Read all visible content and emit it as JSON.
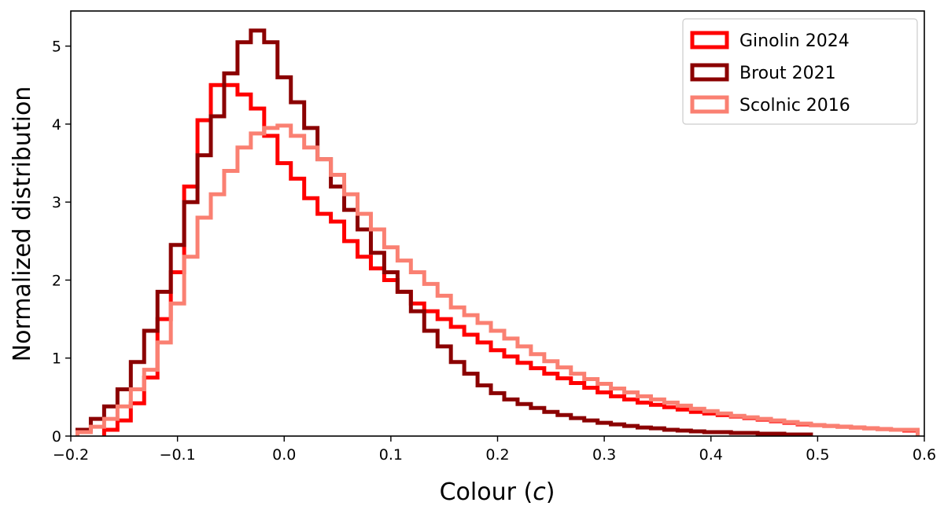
{
  "chart_data": {
    "type": "histogram",
    "xlabel": "Colour (",
    "xlabel_var": "c",
    "xlabel_end": ")",
    "ylabel": "Normalized distribution",
    "xlim": [
      -0.2,
      0.6
    ],
    "ylim": [
      0,
      5.45
    ],
    "xticks": [
      -0.2,
      -0.1,
      0.0,
      0.1,
      0.2,
      0.3,
      0.4,
      0.5,
      0.6
    ],
    "xtick_labels": [
      "−0.2",
      "−0.1",
      "0.0",
      "0.1",
      "0.2",
      "0.3",
      "0.4",
      "0.5",
      "0.6"
    ],
    "yticks": [
      0,
      1,
      2,
      3,
      4,
      5
    ],
    "ytick_labels": [
      "0",
      "1",
      "2",
      "3",
      "4",
      "5"
    ],
    "grid": false,
    "legend_placement": "top-right",
    "series": [
      {
        "name": "Ginolin 2024",
        "color": "#ff0000",
        "x": [
          -0.1625,
          -0.15,
          -0.1375,
          -0.125,
          -0.1125,
          -0.1,
          -0.0875,
          -0.075,
          -0.0625,
          -0.05,
          -0.0375,
          -0.025,
          -0.0125,
          0.0,
          0.0125,
          0.025,
          0.0375,
          0.05,
          0.0625,
          0.075,
          0.0875,
          0.1,
          0.1125,
          0.125,
          0.1375,
          0.15,
          0.1625,
          0.175,
          0.1875,
          0.2,
          0.2125,
          0.225,
          0.2375,
          0.25,
          0.2625,
          0.275,
          0.2875,
          0.3,
          0.3125,
          0.325,
          0.3375,
          0.35,
          0.3625,
          0.375,
          0.3875,
          0.4,
          0.4125,
          0.425,
          0.4375,
          0.45,
          0.4625,
          0.475,
          0.4875,
          0.5,
          0.5125,
          0.525,
          0.5375,
          0.55,
          0.5625,
          0.575,
          0.5875
        ],
        "values": [
          0.08,
          0.2,
          0.42,
          0.75,
          1.5,
          2.1,
          3.2,
          4.05,
          4.5,
          4.5,
          4.38,
          4.2,
          3.85,
          3.5,
          3.3,
          3.05,
          2.85,
          2.75,
          2.5,
          2.3,
          2.15,
          2.0,
          1.85,
          1.7,
          1.6,
          1.5,
          1.4,
          1.3,
          1.2,
          1.1,
          1.02,
          0.94,
          0.87,
          0.8,
          0.74,
          0.68,
          0.62,
          0.56,
          0.51,
          0.47,
          0.43,
          0.4,
          0.37,
          0.34,
          0.31,
          0.29,
          0.27,
          0.25,
          0.23,
          0.21,
          0.19,
          0.17,
          0.15,
          0.14,
          0.13,
          0.12,
          0.11,
          0.1,
          0.09,
          0.08,
          0.07
        ]
      },
      {
        "name": "Brout 2021",
        "color": "#8b0000",
        "x": [
          -0.1875,
          -0.175,
          -0.1625,
          -0.15,
          -0.1375,
          -0.125,
          -0.1125,
          -0.1,
          -0.0875,
          -0.075,
          -0.0625,
          -0.05,
          -0.0375,
          -0.025,
          -0.0125,
          0.0,
          0.0125,
          0.025,
          0.0375,
          0.05,
          0.0625,
          0.075,
          0.0875,
          0.1,
          0.1125,
          0.125,
          0.1375,
          0.15,
          0.1625,
          0.175,
          0.1875,
          0.2,
          0.2125,
          0.225,
          0.2375,
          0.25,
          0.2625,
          0.275,
          0.2875,
          0.3,
          0.3125,
          0.325,
          0.3375,
          0.35,
          0.3625,
          0.375,
          0.3875,
          0.4,
          0.4125,
          0.425,
          0.4375,
          0.45,
          0.4625,
          0.475,
          0.4875
        ],
        "values": [
          0.08,
          0.22,
          0.38,
          0.6,
          0.95,
          1.35,
          1.85,
          2.45,
          3.0,
          3.6,
          4.1,
          4.65,
          5.05,
          5.2,
          5.05,
          4.6,
          4.28,
          3.95,
          3.55,
          3.2,
          2.9,
          2.65,
          2.35,
          2.1,
          1.85,
          1.6,
          1.35,
          1.15,
          0.95,
          0.8,
          0.65,
          0.55,
          0.47,
          0.41,
          0.36,
          0.31,
          0.27,
          0.23,
          0.2,
          0.17,
          0.15,
          0.13,
          0.11,
          0.1,
          0.08,
          0.07,
          0.06,
          0.05,
          0.05,
          0.04,
          0.04,
          0.03,
          0.03,
          0.02,
          0.02
        ]
      },
      {
        "name": "Scolnic 2016",
        "color": "#fa8072",
        "x": [
          -0.1875,
          -0.175,
          -0.1625,
          -0.15,
          -0.1375,
          -0.125,
          -0.1125,
          -0.1,
          -0.0875,
          -0.075,
          -0.0625,
          -0.05,
          -0.0375,
          -0.025,
          -0.0125,
          0.0,
          0.0125,
          0.025,
          0.0375,
          0.05,
          0.0625,
          0.075,
          0.0875,
          0.1,
          0.1125,
          0.125,
          0.1375,
          0.15,
          0.1625,
          0.175,
          0.1875,
          0.2,
          0.2125,
          0.225,
          0.2375,
          0.25,
          0.2625,
          0.275,
          0.2875,
          0.3,
          0.3125,
          0.325,
          0.3375,
          0.35,
          0.3625,
          0.375,
          0.3875,
          0.4,
          0.4125,
          0.425,
          0.4375,
          0.45,
          0.4625,
          0.475,
          0.4875,
          0.5,
          0.5125,
          0.525,
          0.5375,
          0.55,
          0.5625,
          0.575,
          0.5875
        ],
        "values": [
          0.05,
          0.12,
          0.22,
          0.38,
          0.6,
          0.85,
          1.2,
          1.7,
          2.3,
          2.8,
          3.1,
          3.4,
          3.7,
          3.88,
          3.95,
          3.98,
          3.85,
          3.7,
          3.55,
          3.35,
          3.1,
          2.85,
          2.65,
          2.42,
          2.25,
          2.1,
          1.95,
          1.8,
          1.65,
          1.55,
          1.45,
          1.35,
          1.25,
          1.15,
          1.05,
          0.96,
          0.88,
          0.8,
          0.73,
          0.67,
          0.61,
          0.56,
          0.51,
          0.47,
          0.43,
          0.39,
          0.35,
          0.32,
          0.29,
          0.26,
          0.24,
          0.22,
          0.2,
          0.18,
          0.16,
          0.14,
          0.13,
          0.12,
          0.11,
          0.1,
          0.09,
          0.08,
          0.08
        ]
      }
    ]
  }
}
